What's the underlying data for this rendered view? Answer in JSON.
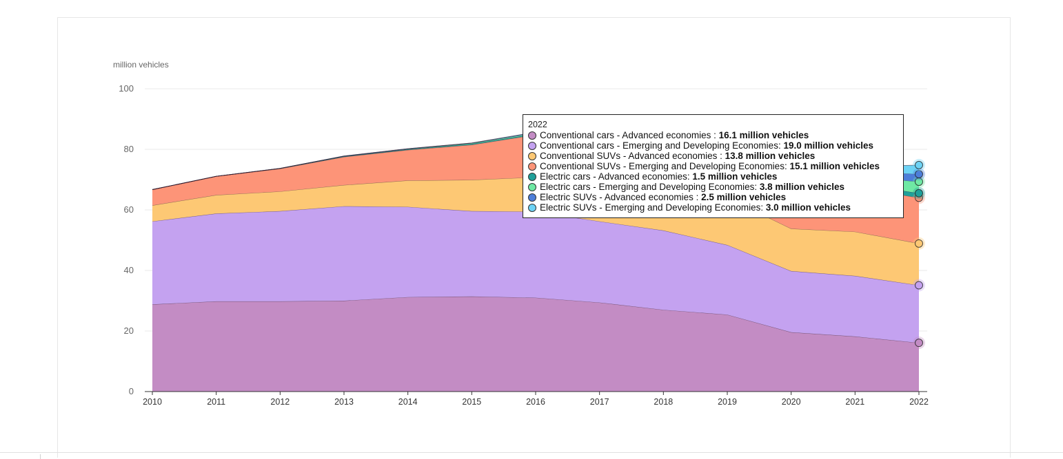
{
  "chart_data": {
    "type": "area",
    "stacked": true,
    "ylabel": "million vehicles",
    "ylim": [
      0,
      100
    ],
    "yticks": [
      0,
      20,
      40,
      60,
      80,
      100
    ],
    "x": [
      2010,
      2011,
      2012,
      2013,
      2014,
      2015,
      2016,
      2017,
      2018,
      2019,
      2020,
      2021,
      2022
    ],
    "grid": true,
    "series": [
      {
        "name": "Conventional cars - Advanced economies",
        "color": "#c38cc4",
        "values": [
          28.8,
          29.8,
          29.8,
          30.0,
          31.2,
          31.4,
          31.0,
          29.4,
          27.0,
          25.4,
          19.6,
          18.2,
          16.1
        ]
      },
      {
        "name": "Conventional cars - Emerging and Developing Economies",
        "color": "#c4a2f0",
        "values": [
          27.4,
          29.0,
          29.8,
          31.2,
          29.8,
          28.2,
          28.4,
          26.8,
          26.2,
          23.0,
          20.2,
          20.0,
          19.0
        ]
      },
      {
        "name": "Conventional SUVs - Advanced economies",
        "color": "#fdc874",
        "values": [
          5.3,
          6.1,
          6.5,
          7.0,
          8.7,
          10.3,
          11.4,
          13.2,
          14.8,
          15.6,
          14.0,
          14.6,
          13.8
        ]
      },
      {
        "name": "Conventional SUVs - Emerging and Developing Economies",
        "color": "#fd9478",
        "values": [
          5.2,
          6.2,
          7.5,
          9.3,
          10.1,
          11.6,
          14.0,
          16.2,
          16.0,
          14.8,
          14.8,
          14.6,
          15.1
        ]
      },
      {
        "name": "Electric cars - Advanced economies",
        "color": "#1fa09a",
        "values": [
          0.0,
          0.0,
          0.1,
          0.2,
          0.2,
          0.3,
          0.3,
          0.4,
          0.6,
          0.7,
          0.9,
          1.3,
          1.5
        ]
      },
      {
        "name": "Electric cars - Emerging and Developing Economies",
        "color": "#6fe9a4",
        "values": [
          0.0,
          0.0,
          0.0,
          0.0,
          0.1,
          0.2,
          0.3,
          0.5,
          0.8,
          0.9,
          1.0,
          2.4,
          3.8
        ]
      },
      {
        "name": "Electric SUVs - Advanced economies",
        "color": "#4d7ed9",
        "values": [
          0.0,
          0.0,
          0.0,
          0.1,
          0.1,
          0.1,
          0.2,
          0.2,
          0.3,
          0.4,
          0.7,
          1.6,
          2.5
        ]
      },
      {
        "name": "Electric SUVs - Emerging and Developing Economies",
        "color": "#6dd3f5",
        "values": [
          0.0,
          0.0,
          0.0,
          0.0,
          0.0,
          0.0,
          0.1,
          0.1,
          0.2,
          0.3,
          0.5,
          1.6,
          3.0
        ]
      }
    ],
    "hover_x": 2022,
    "tooltip": {
      "year": "2022",
      "rows": [
        {
          "label": "Conventional cars - Advanced economies : ",
          "value": "16.1 million vehicles",
          "color": "#c38cc4"
        },
        {
          "label": "Conventional cars - Emerging and Developing Economies: ",
          "value": "19.0 million vehicles",
          "color": "#c4a2f0"
        },
        {
          "label": "Conventional SUVs - Advanced economies : ",
          "value": "13.8 million vehicles",
          "color": "#fdc874"
        },
        {
          "label": "Conventional SUVs - Emerging and Developing Economies: ",
          "value": "15.1 million vehicles",
          "color": "#fd9478"
        },
        {
          "label": "Electric cars - Advanced economies: ",
          "value": "1.5 million vehicles",
          "color": "#1fa09a"
        },
        {
          "label": "Electric cars - Emerging and Developing Economies: ",
          "value": "3.8 million vehicles",
          "color": "#6fe9a4"
        },
        {
          "label": "Electric SUVs - Advanced economies : ",
          "value": "2.5 million vehicles",
          "color": "#4d7ed9"
        },
        {
          "label": "Electric SUVs - Emerging and Developing Economies: ",
          "value": "3.0 million vehicles",
          "color": "#6dd3f5"
        }
      ]
    }
  }
}
